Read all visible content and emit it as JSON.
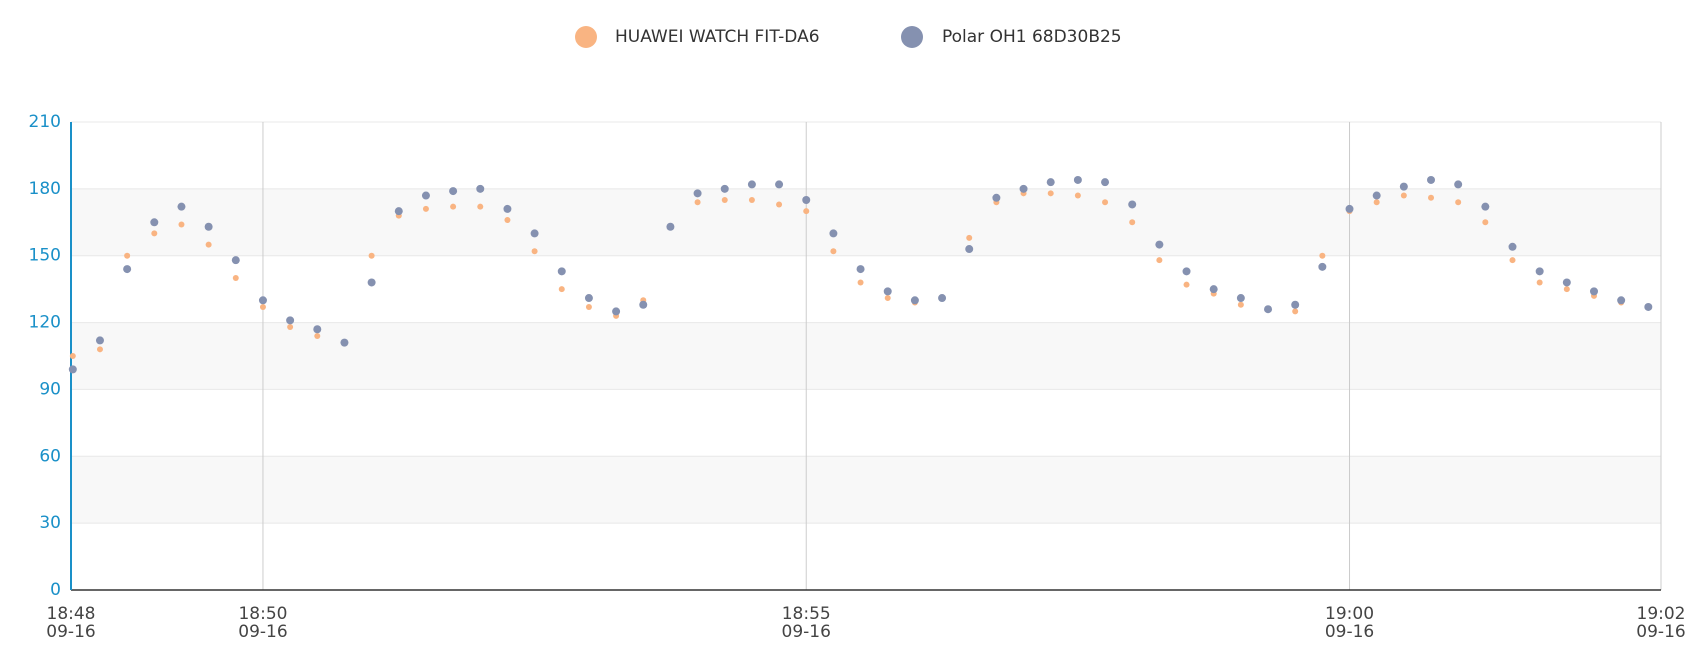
{
  "chart_data": {
    "type": "scatter",
    "x": [
      "18:48:15",
      "18:48:30",
      "18:48:45",
      "18:49:00",
      "18:49:15",
      "18:49:30",
      "18:49:45",
      "18:50:00",
      "18:50:15",
      "18:50:30",
      "18:50:45",
      "18:51:00",
      "18:51:15",
      "18:51:30",
      "18:51:45",
      "18:52:00",
      "18:52:15",
      "18:52:30",
      "18:52:45",
      "18:53:00",
      "18:53:15",
      "18:53:30",
      "18:53:45",
      "18:54:00",
      "18:54:15",
      "18:54:30",
      "18:54:45",
      "18:55:00",
      "18:55:15",
      "18:55:30",
      "18:55:45",
      "18:56:00",
      "18:56:15",
      "18:56:30",
      "18:56:45",
      "18:57:00",
      "18:57:15",
      "18:57:30",
      "18:57:45",
      "18:58:00",
      "18:58:15",
      "18:58:30",
      "18:58:45",
      "18:59:00",
      "18:59:15",
      "18:59:30",
      "18:59:45",
      "19:00:00",
      "19:00:15",
      "19:00:30",
      "19:00:45",
      "19:01:00",
      "19:01:15",
      "19:01:30",
      "19:01:45",
      "19:02:00",
      "19:02:15",
      "19:02:30",
      "19:02:45"
    ],
    "series": [
      {
        "name": "HUAWEI WATCH FIT-DA6",
        "color": "#f9b482",
        "values": [
          105,
          108,
          150,
          160,
          164,
          155,
          140,
          127,
          118,
          114,
          111,
          150,
          168,
          171,
          172,
          172,
          166,
          152,
          135,
          127,
          123,
          130,
          163,
          174,
          175,
          175,
          173,
          170,
          152,
          138,
          131,
          129,
          131,
          158,
          174,
          178,
          178,
          177,
          174,
          165,
          148,
          137,
          133,
          128,
          126,
          125,
          150,
          170,
          174,
          177,
          176,
          174,
          165,
          148,
          138,
          135,
          132,
          129,
          127
        ]
      },
      {
        "name": "Polar OH1 68D30B25",
        "color": "#8591b0",
        "values": [
          99,
          112,
          144,
          165,
          172,
          163,
          148,
          130,
          121,
          117,
          111,
          138,
          170,
          177,
          179,
          180,
          171,
          160,
          143,
          131,
          125,
          128,
          163,
          178,
          180,
          182,
          182,
          175,
          160,
          144,
          134,
          130,
          131,
          153,
          176,
          180,
          183,
          184,
          183,
          173,
          155,
          143,
          135,
          131,
          126,
          128,
          145,
          171,
          177,
          181,
          184,
          182,
          172,
          154,
          143,
          138,
          134,
          130,
          127
        ]
      }
    ],
    "xlim": [
      "18:48:14",
      "19:02:52"
    ],
    "xticks": [
      {
        "value": "18:48:14",
        "label": [
          "18:48",
          "09-16"
        ]
      },
      {
        "value": "18:50:00",
        "label": [
          "18:50",
          "09-16"
        ]
      },
      {
        "value": "18:55:00",
        "label": [
          "18:55",
          "09-16"
        ]
      },
      {
        "value": "19:00:00",
        "label": [
          "19:00",
          "09-16"
        ]
      },
      {
        "value": "19:02:52",
        "label": [
          "19:02",
          "09-16"
        ]
      }
    ],
    "ylim": [
      0,
      210
    ],
    "yticks": [
      0,
      30,
      60,
      90,
      120,
      150,
      180,
      210
    ],
    "grid": true
  }
}
